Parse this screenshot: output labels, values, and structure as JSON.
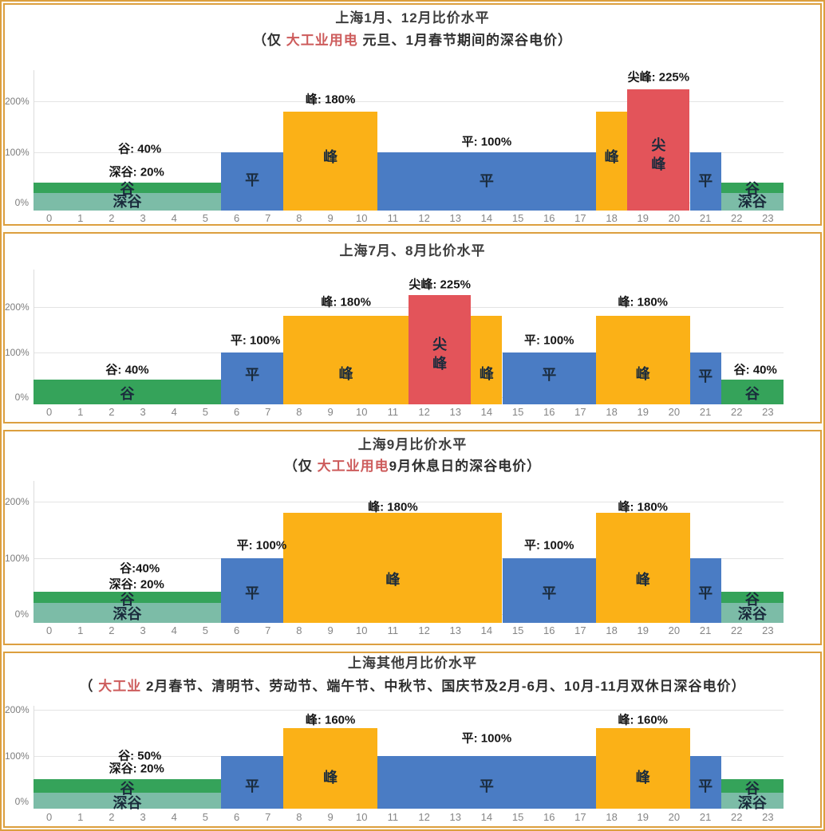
{
  "colors": {
    "valley": "#35a35a",
    "deep_valley": "#7cbca7",
    "flat": "#4a7cc4",
    "peak": "#fbb117",
    "sharp": "#e3545a",
    "panel_border": "#dc9f3e",
    "gridline": "#e4e4e4",
    "title_text": "#3d3d3d",
    "subtitle_red": "#cd5c5c",
    "axis_text": "#858585",
    "bar_label_text": "#1a2b3c",
    "annotation_text": "#151515"
  },
  "legend_levels": [
    "深谷",
    "谷",
    "平",
    "峰",
    "尖峰"
  ],
  "chart_data": [
    {
      "id": "jan-dec",
      "type": "bar",
      "title": "上海1月、12月比价水平",
      "subtitle_parts": [
        {
          "text": "（仅 ",
          "red": false
        },
        {
          "text": "大工业用电",
          "red": true
        },
        {
          "text": " 元旦、1月春节期间的深谷电价）",
          "red": false
        }
      ],
      "ylim": [
        -15,
        262
      ],
      "y_ticks": [
        {
          "value": 0,
          "label": "0%"
        },
        {
          "value": 100,
          "label": "100%"
        },
        {
          "value": 200,
          "label": "200%"
        }
      ],
      "x_ticks": [
        0,
        1,
        2,
        3,
        4,
        5,
        6,
        7,
        8,
        9,
        10,
        11,
        12,
        13,
        14,
        15,
        16,
        17,
        18,
        19,
        20,
        21,
        22,
        23
      ],
      "segments": [
        {
          "level": "谷",
          "key": "valley",
          "hours": [
            0,
            5
          ],
          "value": 40,
          "label_y": 28
        },
        {
          "level": "平",
          "key": "flat",
          "hours": [
            6,
            7
          ],
          "value": 100,
          "label_y": 45
        },
        {
          "level": "峰",
          "key": "peak",
          "hours": [
            8,
            10
          ],
          "value": 180,
          "label_y": 90
        },
        {
          "level": "平",
          "key": "flat",
          "hours": [
            11,
            17
          ],
          "value": 100,
          "label_y": 44
        },
        {
          "level": "峰",
          "key": "peak",
          "hours": [
            18,
            18
          ],
          "value": 180,
          "label_y": 90
        },
        {
          "level": "尖峰",
          "key": "sharp",
          "hours": [
            19,
            20
          ],
          "value": 225,
          "label_y": 95,
          "stacked": true
        },
        {
          "level": "平",
          "key": "flat",
          "hours": [
            21,
            21
          ],
          "value": 100,
          "label_y": 44
        },
        {
          "level": "谷",
          "key": "valley",
          "hours": [
            22,
            23
          ],
          "value": 40,
          "label_y": 28
        }
      ],
      "deep_valley": [
        {
          "hours": [
            0,
            5
          ],
          "value": 20,
          "label": "深谷",
          "label_y": 2
        },
        {
          "hours": [
            22,
            23
          ],
          "value": 20,
          "label": "深谷",
          "label_y": 2
        }
      ],
      "annotations": [
        {
          "text": "谷: 40%",
          "x": 2.9,
          "y": 108
        },
        {
          "text": "深谷: 20%",
          "x": 2.8,
          "y": 62
        },
        {
          "text": "峰: 180%",
          "x": 9,
          "y": 205
        },
        {
          "text": "平: 100%",
          "x": 14,
          "y": 122
        },
        {
          "text": "尖峰: 225%",
          "x": 19.5,
          "y": 250
        }
      ]
    },
    {
      "id": "jul-aug",
      "type": "bar",
      "title": "上海7月、8月比价水平",
      "subtitle_parts": [],
      "ylim": [
        -15,
        282
      ],
      "y_ticks": [
        {
          "value": 0,
          "label": "0%"
        },
        {
          "value": 100,
          "label": "100%"
        },
        {
          "value": 200,
          "label": "200%"
        }
      ],
      "x_ticks": [
        0,
        1,
        2,
        3,
        4,
        5,
        6,
        7,
        8,
        9,
        10,
        11,
        12,
        13,
        14,
        15,
        16,
        17,
        18,
        19,
        20,
        21,
        22,
        23
      ],
      "segments": [
        {
          "level": "谷",
          "key": "valley",
          "hours": [
            0,
            5
          ],
          "value": 40,
          "label_y": 8
        },
        {
          "level": "平",
          "key": "flat",
          "hours": [
            6,
            7
          ],
          "value": 100,
          "label_y": 50
        },
        {
          "level": "峰",
          "key": "peak",
          "hours": [
            8,
            11
          ],
          "value": 180,
          "label_y": 52
        },
        {
          "level": "尖峰",
          "key": "sharp",
          "hours": [
            12,
            13
          ],
          "value": 225,
          "label_y": 95,
          "stacked": true
        },
        {
          "level": "峰",
          "key": "peak",
          "hours": [
            14,
            14
          ],
          "value": 180,
          "label_y": 52
        },
        {
          "level": "平",
          "key": "flat",
          "hours": [
            15,
            17
          ],
          "value": 100,
          "label_y": 50
        },
        {
          "level": "峰",
          "key": "peak",
          "hours": [
            18,
            20
          ],
          "value": 180,
          "label_y": 52
        },
        {
          "level": "平",
          "key": "flat",
          "hours": [
            21,
            21
          ],
          "value": 100,
          "label_y": 46
        },
        {
          "level": "谷",
          "key": "valley",
          "hours": [
            22,
            23
          ],
          "value": 40,
          "label_y": 8
        }
      ],
      "deep_valley": [],
      "annotations": [
        {
          "text": "谷: 40%",
          "x": 2.5,
          "y": 63
        },
        {
          "text": "平: 100%",
          "x": 6.6,
          "y": 128
        },
        {
          "text": "峰: 180%",
          "x": 9.5,
          "y": 212
        },
        {
          "text": "尖峰: 225%",
          "x": 12.5,
          "y": 250
        },
        {
          "text": "平: 100%",
          "x": 16,
          "y": 128
        },
        {
          "text": "峰: 180%",
          "x": 19,
          "y": 212
        },
        {
          "text": "谷: 40%",
          "x": 22.6,
          "y": 63
        }
      ]
    },
    {
      "id": "sep",
      "type": "bar",
      "title": "上海9月比价水平",
      "subtitle_parts": [
        {
          "text": "（仅 ",
          "red": false
        },
        {
          "text": "大工业用电",
          "red": true
        },
        {
          "text": "9月休息日的深谷电价）",
          "red": false
        }
      ],
      "ylim": [
        -15,
        237
      ],
      "y_ticks": [
        {
          "value": 0,
          "label": "0%"
        },
        {
          "value": 100,
          "label": "100%"
        },
        {
          "value": 200,
          "label": "200%"
        }
      ],
      "x_ticks": [
        0,
        1,
        2,
        3,
        4,
        5,
        6,
        7,
        8,
        9,
        10,
        11,
        12,
        13,
        14,
        15,
        16,
        17,
        18,
        19,
        20,
        21,
        22,
        23
      ],
      "segments": [
        {
          "level": "谷",
          "key": "valley",
          "hours": [
            0,
            5
          ],
          "value": 40,
          "label_y": 26
        },
        {
          "level": "平",
          "key": "flat",
          "hours": [
            6,
            7
          ],
          "value": 100,
          "label_y": 38
        },
        {
          "level": "峰",
          "key": "peak",
          "hours": [
            8,
            14
          ],
          "value": 180,
          "label_y": 62
        },
        {
          "level": "平",
          "key": "flat",
          "hours": [
            15,
            17
          ],
          "value": 100,
          "label_y": 38
        },
        {
          "level": "峰",
          "key": "peak",
          "hours": [
            18,
            20
          ],
          "value": 180,
          "label_y": 62
        },
        {
          "level": "平",
          "key": "flat",
          "hours": [
            21,
            21
          ],
          "value": 100,
          "label_y": 38
        },
        {
          "level": "谷",
          "key": "valley",
          "hours": [
            22,
            23
          ],
          "value": 40,
          "label_y": 26
        }
      ],
      "deep_valley": [
        {
          "hours": [
            0,
            5
          ],
          "value": 20,
          "label": "深谷",
          "label_y": 0
        },
        {
          "hours": [
            22,
            23
          ],
          "value": 20,
          "label": "深谷",
          "label_y": 0
        }
      ],
      "annotations": [
        {
          "text": "谷:40%",
          "x": 2.9,
          "y": 83
        },
        {
          "text": "深谷: 20%",
          "x": 2.8,
          "y": 54
        },
        {
          "text": "平: 100%",
          "x": 6.8,
          "y": 124
        },
        {
          "text": "峰: 180%",
          "x": 11,
          "y": 192
        },
        {
          "text": "平: 100%",
          "x": 16,
          "y": 124
        },
        {
          "text": "峰: 180%",
          "x": 19,
          "y": 192
        }
      ]
    },
    {
      "id": "other-months",
      "type": "bar",
      "title": "上海其他月比价水平",
      "subtitle_parts": [
        {
          "text": "（ ",
          "red": false
        },
        {
          "text": "大工业",
          "red": true
        },
        {
          "text": " 2月春节、清明节、劳动节、端午节、中秋节、国庆节及2月-6月、10月-11月双休日深谷电价）",
          "red": false
        }
      ],
      "ylim": [
        -15,
        209
      ],
      "y_ticks": [
        {
          "value": 0,
          "label": "0%"
        },
        {
          "value": 100,
          "label": "100%"
        },
        {
          "value": 200,
          "label": "200%"
        }
      ],
      "x_ticks": [
        0,
        1,
        2,
        3,
        4,
        5,
        6,
        7,
        8,
        9,
        10,
        11,
        12,
        13,
        14,
        15,
        16,
        17,
        18,
        19,
        20,
        21,
        22,
        23
      ],
      "segments": [
        {
          "level": "谷",
          "key": "valley",
          "hours": [
            0,
            5
          ],
          "value": 50,
          "label_y": 28
        },
        {
          "level": "平",
          "key": "flat",
          "hours": [
            6,
            7
          ],
          "value": 100,
          "label_y": 34
        },
        {
          "level": "峰",
          "key": "peak",
          "hours": [
            8,
            10
          ],
          "value": 160,
          "label_y": 53
        },
        {
          "level": "平",
          "key": "flat",
          "hours": [
            11,
            17
          ],
          "value": 100,
          "label_y": 34
        },
        {
          "level": "峰",
          "key": "peak",
          "hours": [
            18,
            20
          ],
          "value": 160,
          "label_y": 53
        },
        {
          "level": "平",
          "key": "flat",
          "hours": [
            21,
            21
          ],
          "value": 100,
          "label_y": 34
        },
        {
          "level": "谷",
          "key": "valley",
          "hours": [
            22,
            23
          ],
          "value": 50,
          "label_y": 28
        }
      ],
      "deep_valley": [
        {
          "hours": [
            0,
            5
          ],
          "value": 20,
          "label": "深谷",
          "label_y": -2
        },
        {
          "hours": [
            22,
            23
          ],
          "value": 20,
          "label": "深谷",
          "label_y": -2
        }
      ],
      "annotations": [
        {
          "text": "谷: 50%",
          "x": 2.9,
          "y": 102
        },
        {
          "text": "深谷: 20%",
          "x": 2.8,
          "y": 74
        },
        {
          "text": "峰: 160%",
          "x": 9,
          "y": 179
        },
        {
          "text": "平: 100%",
          "x": 14,
          "y": 140
        },
        {
          "text": "峰: 160%",
          "x": 19,
          "y": 179
        }
      ]
    }
  ]
}
